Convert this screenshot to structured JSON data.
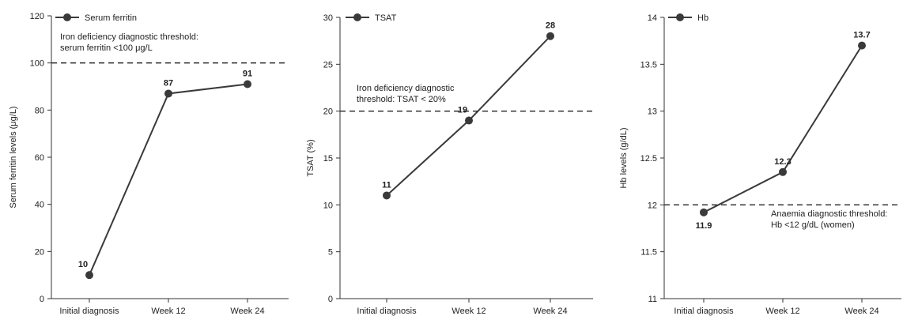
{
  "chart_data": [
    {
      "type": "line",
      "categories": [
        "Initial diagnosis",
        "Week 12",
        "Week 24"
      ],
      "series": [
        {
          "name": "Serum ferritin",
          "values": [
            10,
            87,
            91
          ]
        }
      ],
      "data_labels": [
        "10",
        "87",
        "91"
      ],
      "ylabel": "Serum ferritin levels (μg/L)",
      "ylim": [
        0,
        120
      ],
      "yticks": [
        0,
        20,
        40,
        60,
        80,
        100,
        120
      ],
      "ytick_labels": [
        "0",
        "20",
        "40",
        "60",
        "80",
        "100",
        "120"
      ],
      "threshold": {
        "value": 100,
        "text_lines": [
          "Iron deficiency diagnostic threshold:",
          "serum ferritin <100 μg/L"
        ]
      },
      "legend": "top-left",
      "grid": false
    },
    {
      "type": "line",
      "categories": [
        "Initial diagnosis",
        "Week 12",
        "Week 24"
      ],
      "series": [
        {
          "name": "TSAT",
          "values": [
            11,
            19,
            28
          ]
        }
      ],
      "data_labels": [
        "11",
        "19",
        "28"
      ],
      "ylabel": "TSAT (%)",
      "ylim": [
        0,
        30
      ],
      "yticks": [
        0,
        5,
        10,
        15,
        20,
        25,
        30
      ],
      "ytick_labels": [
        "0",
        "5",
        "10",
        "15",
        "20",
        "25",
        "30"
      ],
      "threshold": {
        "value": 20,
        "text_lines": [
          "Iron deficiency diagnostic",
          "threshold: TSAT < 20%"
        ]
      },
      "legend": "top-left",
      "grid": false
    },
    {
      "type": "line",
      "categories": [
        "Initial diagnosis",
        "Week 12",
        "Week 24"
      ],
      "series": [
        {
          "name": "Hb",
          "values": [
            11.92,
            12.35,
            13.7
          ]
        }
      ],
      "data_labels": [
        "11.9",
        "12.3",
        "13.7"
      ],
      "ylabel": "Hb levels (g/dL)",
      "ylim": [
        11,
        14
      ],
      "yticks": [
        11,
        11.5,
        12,
        12.5,
        13,
        13.5,
        14
      ],
      "ytick_labels": [
        "11",
        "11.5",
        "12",
        "12.5",
        "13",
        "13.5",
        "14"
      ],
      "threshold": {
        "value": 12,
        "text_lines": [
          "Anaemia diagnostic threshold:",
          "Hb <12 g/dL (women)"
        ]
      },
      "legend": "top-left",
      "grid": false
    }
  ],
  "colors": {
    "line": "#3a3a3a",
    "marker": "#3a3a3a",
    "threshold": "#222222",
    "axis": "#333333"
  }
}
